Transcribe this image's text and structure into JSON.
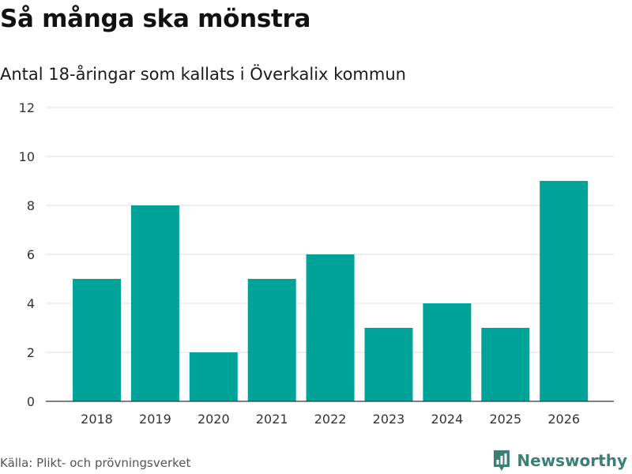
{
  "header": {
    "title": "Så många ska mönstra",
    "subtitle": "Antal 18-åringar som kallats i Överkalix kommun"
  },
  "footer": {
    "source": "Källa: Plikt- och prövningsverket",
    "brand": "Newsworthy"
  },
  "colors": {
    "bar": "#00a398",
    "grid": "#dddddd",
    "axis": "#333333",
    "tick_text": "#333333",
    "brand": "#3c7f74"
  },
  "icons": {
    "brand_logo": "bar-chart-pin-icon"
  },
  "chart_data": {
    "type": "bar",
    "title": "Så många ska mönstra",
    "subtitle": "Antal 18-åringar som kallats i Överkalix kommun",
    "xlabel": "",
    "ylabel": "",
    "categories": [
      "2018",
      "2019",
      "2020",
      "2021",
      "2022",
      "2023",
      "2024",
      "2025",
      "2026"
    ],
    "series": [
      {
        "name": "Antal 18-åringar",
        "values": [
          5,
          8,
          2,
          5,
          6,
          3,
          4,
          3,
          9
        ]
      }
    ],
    "ylim": [
      0,
      12
    ],
    "yticks": [
      0,
      2,
      4,
      6,
      8,
      10,
      12
    ],
    "grid": true,
    "legend": "none"
  }
}
